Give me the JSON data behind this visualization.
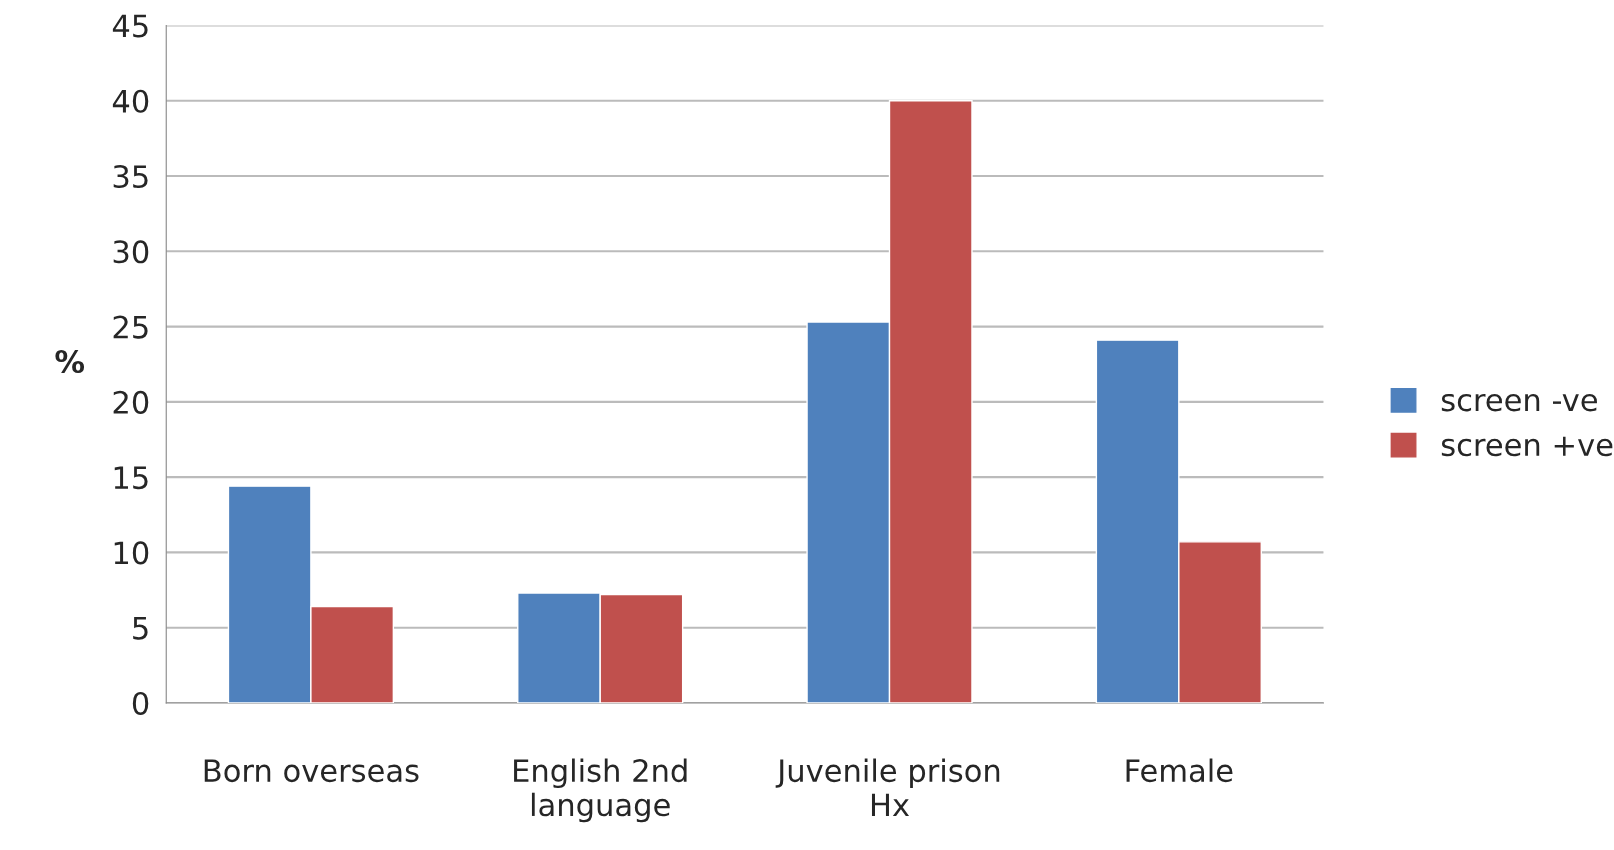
{
  "chart_data": {
    "type": "bar",
    "ylabel": "%",
    "categories": [
      "Born overseas",
      "English 2nd\nlanguage",
      "Juvenile prison\nHx",
      "Female"
    ],
    "series": [
      {
        "name": "screen -ve",
        "color": "#4f81bd",
        "values": [
          14.4,
          7.3,
          25.3,
          24.1
        ]
      },
      {
        "name": "screen +ve",
        "color": "#c0504d",
        "values": [
          6.4,
          7.2,
          40,
          10.7
        ]
      }
    ],
    "ylim": [
      0,
      45
    ],
    "yticks": [
      0,
      5,
      10,
      15,
      20,
      25,
      30,
      35,
      40,
      45
    ],
    "grid": "y",
    "legend": "right"
  }
}
